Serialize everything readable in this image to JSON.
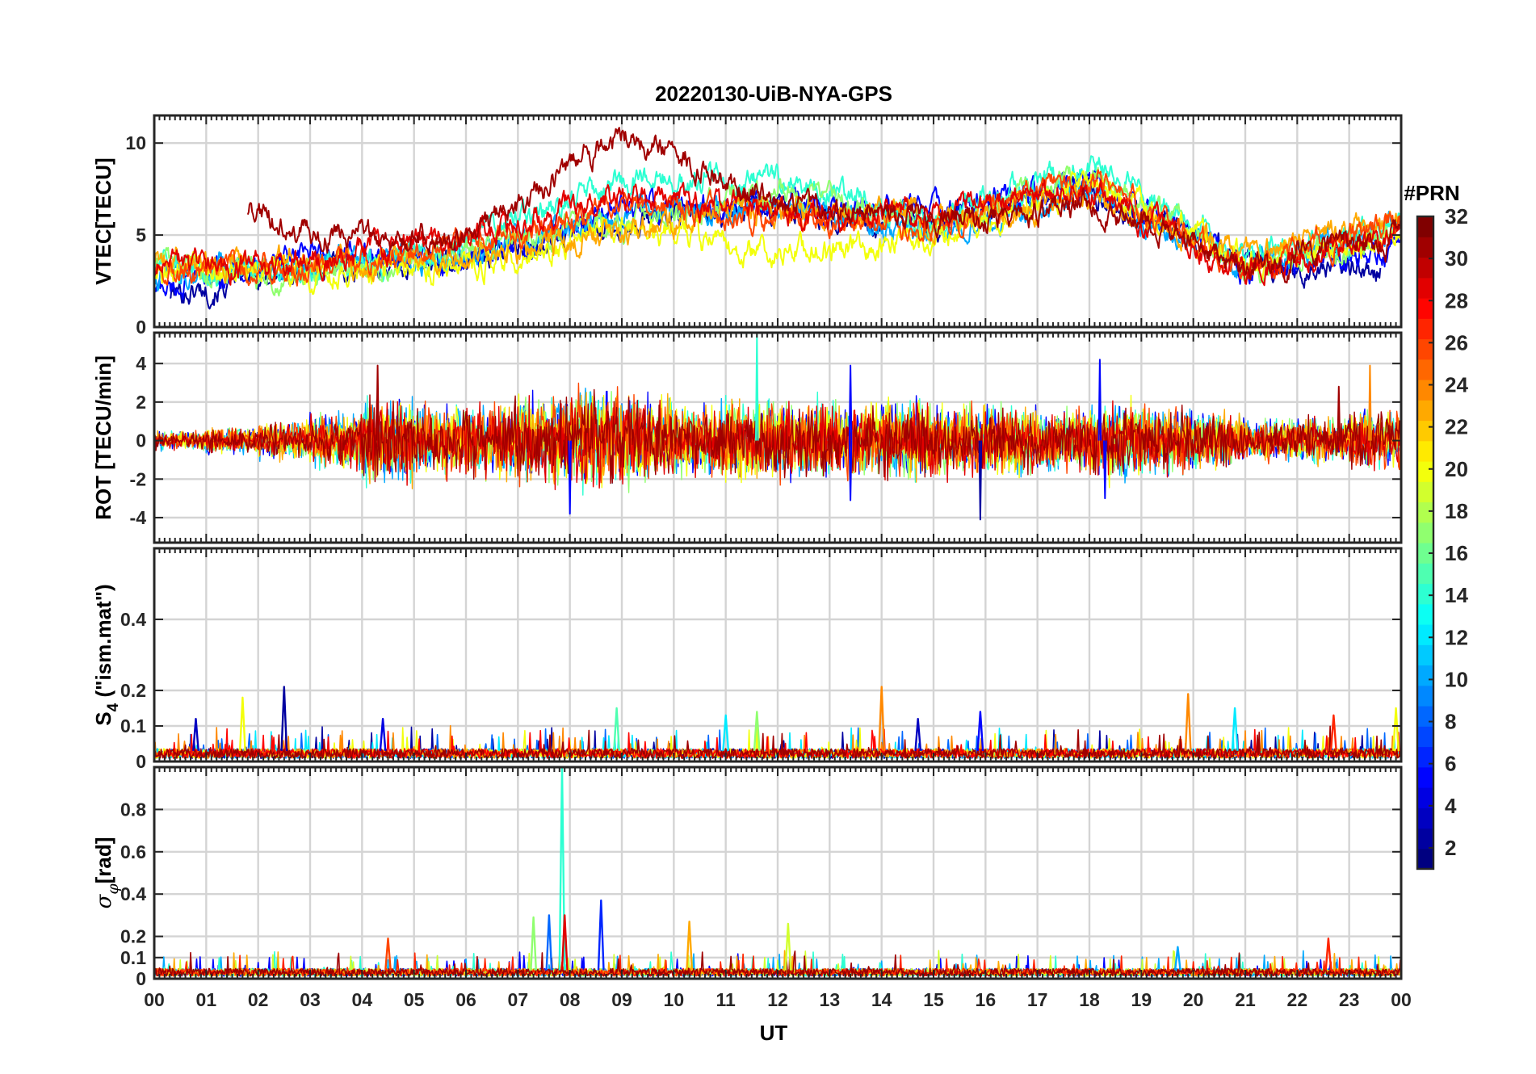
{
  "figure": {
    "title": "20220130-UiB-NYA-GPS",
    "xlabel": "UT"
  },
  "colorbar": {
    "label": "#PRN",
    "range": [
      1,
      32
    ],
    "tick_labels": [
      "2",
      "4",
      "6",
      "8",
      "10",
      "12",
      "14",
      "16",
      "18",
      "20",
      "22",
      "24",
      "26",
      "28",
      "30",
      "32"
    ]
  },
  "chart_data": [
    {
      "type": "line",
      "id": "vtec",
      "title": "20220130-UiB-NYA-GPS",
      "ylabel": "VTEC[TECU]",
      "xlabel": "",
      "xlim": [
        0,
        24
      ],
      "ylim": [
        0,
        11.5
      ],
      "yticks": [
        0,
        5,
        10
      ],
      "ytick_labels": [
        "0",
        "5",
        "10"
      ],
      "series": [
        {
          "name": "PRN 2",
          "prn": 2,
          "x": [
            0.3,
            3,
            6,
            9,
            12,
            15,
            18,
            21,
            23.6
          ],
          "values": [
            1.8,
            3.1,
            3.7,
            5.8,
            6.4,
            5.6,
            7.6,
            3.6,
            3.3
          ]
        },
        {
          "name": "PRN 5",
          "prn": 5,
          "x": [
            0,
            3,
            6,
            9,
            12,
            15,
            18,
            21,
            24
          ],
          "values": [
            2.0,
            3.8,
            3.4,
            6.5,
            7.0,
            6.2,
            8.0,
            3.0,
            4.2
          ]
        },
        {
          "name": "PRN 10",
          "prn": 10,
          "x": [
            0,
            3,
            6,
            9,
            12,
            15,
            18,
            21,
            24
          ],
          "values": [
            2.8,
            3.4,
            3.9,
            6.0,
            6.6,
            5.1,
            7.2,
            3.3,
            5.5
          ]
        },
        {
          "name": "PRN 14",
          "prn": 14,
          "x": [
            0,
            3,
            6,
            9,
            12,
            15,
            18,
            21,
            24
          ],
          "values": [
            3.2,
            3.0,
            4.6,
            7.8,
            8.2,
            5.9,
            8.9,
            3.7,
            5.6
          ]
        },
        {
          "name": "PRN 17",
          "prn": 17,
          "x": [
            0,
            3,
            6,
            9,
            12,
            15,
            18,
            21,
            24
          ],
          "values": [
            3.4,
            2.7,
            4.2,
            5.6,
            7.4,
            5.5,
            8.3,
            3.1,
            5.3
          ]
        },
        {
          "name": "PRN 20",
          "prn": 20,
          "x": [
            0,
            3,
            6,
            9,
            12,
            15,
            18,
            21,
            24
          ],
          "values": [
            3.0,
            2.9,
            3.3,
            5.4,
            4.0,
            4.8,
            7.9,
            3.4,
            5.0
          ]
        },
        {
          "name": "PRN 23",
          "prn": 23,
          "x": [
            0,
            3,
            6,
            9,
            12,
            15,
            18,
            21,
            24
          ],
          "values": [
            3.6,
            3.7,
            3.6,
            5.2,
            6.5,
            6.0,
            7.0,
            3.9,
            6.2
          ]
        },
        {
          "name": "PRN 26",
          "prn": 26,
          "x": [
            0,
            3,
            6,
            9,
            12,
            15,
            18,
            21,
            24
          ],
          "values": [
            2.9,
            3.3,
            4.4,
            6.6,
            5.8,
            5.4,
            8.1,
            3.2,
            5.7
          ]
        },
        {
          "name": "PRN 29",
          "prn": 29,
          "x": [
            0,
            3,
            6,
            9,
            12,
            15,
            18,
            21,
            24
          ],
          "values": [
            3.1,
            3.6,
            4.9,
            7.1,
            6.3,
            6.1,
            7.5,
            3.0,
            5.1
          ]
        },
        {
          "name": "PRN 31",
          "prn": 31,
          "x": [
            1.8,
            3,
            6,
            9,
            12,
            15,
            18,
            21,
            24
          ],
          "values": [
            6.2,
            5.0,
            4.7,
            10.5,
            6.9,
            5.8,
            6.6,
            3.5,
            4.9
          ]
        }
      ]
    },
    {
      "type": "line",
      "id": "rot",
      "ylabel": "ROT [TECU/min]",
      "xlabel": "",
      "xlim": [
        0,
        24
      ],
      "ylim": [
        -5.3,
        5.6
      ],
      "yticks": [
        -4,
        -2,
        0,
        2,
        4
      ],
      "ytick_labels": [
        "-4",
        "-2",
        "0",
        "2",
        "4"
      ],
      "envelope_by_hour": [
        0.4,
        0.6,
        0.8,
        1.2,
        1.8,
        1.5,
        1.6,
        2.0,
        2.3,
        1.9,
        1.6,
        1.8,
        1.7,
        1.6,
        1.8,
        1.5,
        1.6,
        1.4,
        1.7,
        1.5,
        1.2,
        0.9,
        1.0,
        1.3
      ],
      "spikes": [
        {
          "x": 4.3,
          "y": 3.9,
          "prn": 31
        },
        {
          "x": 8.0,
          "y": -3.8,
          "prn": 5
        },
        {
          "x": 11.6,
          "y": 5.5,
          "prn": 14
        },
        {
          "x": 13.4,
          "y": 3.9,
          "prn": 5
        },
        {
          "x": 13.4,
          "y": -3.1,
          "prn": 5
        },
        {
          "x": 15.9,
          "y": -4.1,
          "prn": 2
        },
        {
          "x": 18.2,
          "y": 4.2,
          "prn": 5
        },
        {
          "x": 18.3,
          "y": -3.0,
          "prn": 5
        },
        {
          "x": 22.8,
          "y": 2.8,
          "prn": 31
        },
        {
          "x": 23.4,
          "y": 3.9,
          "prn": 24
        }
      ],
      "series": [
        {
          "name": "PRN 5",
          "prn": 5
        },
        {
          "name": "PRN 10",
          "prn": 10
        },
        {
          "name": "PRN 14",
          "prn": 14
        },
        {
          "name": "PRN 17",
          "prn": 17
        },
        {
          "name": "PRN 20",
          "prn": 20
        },
        {
          "name": "PRN 23",
          "prn": 23
        },
        {
          "name": "PRN 26",
          "prn": 26
        },
        {
          "name": "PRN 29",
          "prn": 29
        },
        {
          "name": "PRN 31",
          "prn": 31
        }
      ]
    },
    {
      "type": "line",
      "id": "s4",
      "ylabel": "S4 (\"ism.mat\")",
      "ylabel_main": "S",
      "ylabel_sub": "4",
      "ylabel_rest": " (\"ism.mat\")",
      "xlabel": "",
      "xlim": [
        0,
        24
      ],
      "ylim": [
        0,
        0.6
      ],
      "yticks": [
        0,
        0.1,
        0.2,
        0.4
      ],
      "ytick_labels": [
        "0",
        "0.1",
        "0.2",
        "0.4"
      ],
      "baseline": 0.03,
      "spikes": [
        {
          "x": 0.8,
          "y": 0.12,
          "prn": 3
        },
        {
          "x": 1.7,
          "y": 0.18,
          "prn": 20
        },
        {
          "x": 2.5,
          "y": 0.21,
          "prn": 2
        },
        {
          "x": 4.4,
          "y": 0.12,
          "prn": 4
        },
        {
          "x": 8.9,
          "y": 0.15,
          "prn": 15
        },
        {
          "x": 11.0,
          "y": 0.13,
          "prn": 12
        },
        {
          "x": 11.6,
          "y": 0.14,
          "prn": 17
        },
        {
          "x": 14.0,
          "y": 0.21,
          "prn": 24
        },
        {
          "x": 14.7,
          "y": 0.12,
          "prn": 3
        },
        {
          "x": 15.9,
          "y": 0.14,
          "prn": 5
        },
        {
          "x": 19.9,
          "y": 0.19,
          "prn": 24
        },
        {
          "x": 20.8,
          "y": 0.15,
          "prn": 12
        },
        {
          "x": 22.7,
          "y": 0.13,
          "prn": 27
        },
        {
          "x": 23.9,
          "y": 0.15,
          "prn": 20
        }
      ],
      "series": [
        {
          "name": "PRN 2",
          "prn": 2
        },
        {
          "name": "PRN 8",
          "prn": 8
        },
        {
          "name": "PRN 12",
          "prn": 12
        },
        {
          "name": "PRN 20",
          "prn": 20
        },
        {
          "name": "PRN 24",
          "prn": 24
        },
        {
          "name": "PRN 28",
          "prn": 28
        },
        {
          "name": "PRN 31",
          "prn": 31
        }
      ]
    },
    {
      "type": "line",
      "id": "sigma_phi",
      "ylabel": "σφ[rad]",
      "ylabel_main": "σ",
      "ylabel_sub": "φ",
      "ylabel_rest": "[rad]",
      "xlabel": "UT",
      "xlim": [
        0,
        24
      ],
      "ylim": [
        0,
        1.0
      ],
      "yticks": [
        0,
        0.1,
        0.2,
        0.4,
        0.6,
        0.8
      ],
      "ytick_labels": [
        "0",
        "0.1",
        "0.2",
        "0.4",
        "0.6",
        "0.8"
      ],
      "xticks": [
        0,
        1,
        2,
        3,
        4,
        5,
        6,
        7,
        8,
        9,
        10,
        11,
        12,
        13,
        14,
        15,
        16,
        17,
        18,
        19,
        20,
        21,
        22,
        23,
        24
      ],
      "xtick_labels": [
        "00",
        "01",
        "02",
        "03",
        "04",
        "05",
        "06",
        "07",
        "08",
        "09",
        "10",
        "11",
        "12",
        "13",
        "14",
        "15",
        "16",
        "17",
        "18",
        "19",
        "20",
        "21",
        "22",
        "23",
        "00"
      ],
      "baseline": 0.04,
      "spikes": [
        {
          "x": 4.5,
          "y": 0.19,
          "prn": 26
        },
        {
          "x": 7.3,
          "y": 0.29,
          "prn": 17
        },
        {
          "x": 7.6,
          "y": 0.3,
          "prn": 8
        },
        {
          "x": 7.85,
          "y": 1.0,
          "prn": 14
        },
        {
          "x": 7.9,
          "y": 0.3,
          "prn": 29
        },
        {
          "x": 8.6,
          "y": 0.37,
          "prn": 6
        },
        {
          "x": 10.3,
          "y": 0.27,
          "prn": 23
        },
        {
          "x": 12.2,
          "y": 0.26,
          "prn": 19
        },
        {
          "x": 19.7,
          "y": 0.15,
          "prn": 10
        },
        {
          "x": 22.6,
          "y": 0.19,
          "prn": 27
        }
      ],
      "series": [
        {
          "name": "PRN 5",
          "prn": 5
        },
        {
          "name": "PRN 10",
          "prn": 10
        },
        {
          "name": "PRN 14",
          "prn": 14
        },
        {
          "name": "PRN 19",
          "prn": 19
        },
        {
          "name": "PRN 23",
          "prn": 23
        },
        {
          "name": "PRN 27",
          "prn": 27
        },
        {
          "name": "PRN 31",
          "prn": 31
        }
      ]
    }
  ]
}
